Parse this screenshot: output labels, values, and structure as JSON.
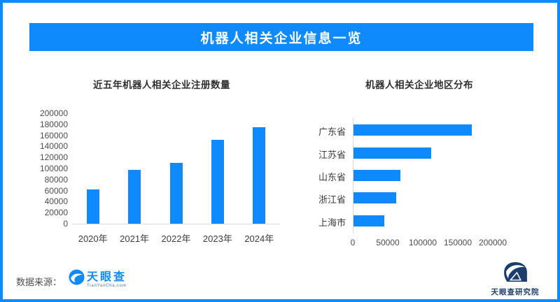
{
  "header": {
    "title": "机器人相关企业信息一览"
  },
  "footer": {
    "source_label": "数据来源：",
    "source_logo_text": "天眼查",
    "source_logo_subtext": "TianYanCha.com",
    "right_logo_text": "天眼查研究院"
  },
  "colors": {
    "accent_blue": "#0e8afd",
    "navy": "#1c3e6e",
    "axis_line": "#d9d9d9",
    "title_text": "#2f2f2f",
    "axis_text": "#4d4d4d"
  },
  "chart_data": [
    {
      "type": "bar",
      "orientation": "vertical",
      "title": "近五年机器人相关企业注册数量",
      "categories": [
        "2020年",
        "2021年",
        "2022年",
        "2023年",
        "2024年"
      ],
      "values": [
        62000,
        97000,
        110000,
        152000,
        175000
      ],
      "ylim": [
        0,
        200000
      ],
      "ytick_step": 20000,
      "xlabel": "",
      "ylabel": "",
      "grid": false,
      "legend": false,
      "bar_color": "#0e8afd"
    },
    {
      "type": "bar",
      "orientation": "horizontal",
      "title": "机器人相关企业地区分布",
      "categories": [
        "广东省",
        "江苏省",
        "山东省",
        "浙江省",
        "上海市"
      ],
      "values": [
        169000,
        111000,
        67000,
        61000,
        44000
      ],
      "xlim": [
        0,
        200000
      ],
      "xtick_step": 50000,
      "xlabel": "",
      "ylabel": "",
      "grid": false,
      "legend": false,
      "bar_color": "#0e8afd"
    }
  ]
}
